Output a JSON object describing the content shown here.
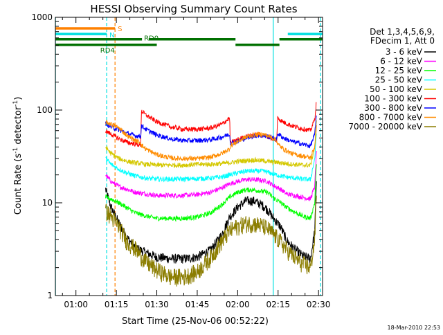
{
  "chart_data": {
    "type": "line",
    "title": "HESSI Observing Summary Count Rates",
    "xlabel": "Start Time (25-Nov-06 00:52:22)",
    "ylabel_main": "Count Rate (s",
    "ylabel_sup1": "-1",
    "ylabel_mid": " detector",
    "ylabel_sup2": "-1",
    "ylabel_end": ")",
    "yscale": "log",
    "ylim": [
      1,
      1000
    ],
    "xlim_minutes": [
      52.37,
      151.5
    ],
    "x_ticks": [
      {
        "t": 60,
        "label": "01:00"
      },
      {
        "t": 75,
        "label": "01:15"
      },
      {
        "t": 90,
        "label": "01:30"
      },
      {
        "t": 105,
        "label": "01:45"
      },
      {
        "t": 120,
        "label": "02:00"
      },
      {
        "t": 135,
        "label": "02:15"
      },
      {
        "t": 150,
        "label": "02:30"
      }
    ],
    "y_ticks": [
      {
        "v": 1,
        "label": "1"
      },
      {
        "v": 10,
        "label": "10"
      },
      {
        "v": 100,
        "label": "100"
      },
      {
        "v": 1000,
        "label": "1000"
      }
    ],
    "legend": {
      "position": "top-right",
      "header1": "Det 1,3,4,5,6,9,",
      "header2": "FDecim 1, Att 0",
      "entries": [
        {
          "label": "3 - 6 keV",
          "color": "#000000"
        },
        {
          "label": "6 - 12 keV",
          "color": "#ff00ff"
        },
        {
          "label": "12 - 25 keV",
          "color": "#00ff00"
        },
        {
          "label": "25 - 50 keV",
          "color": "#00ffff"
        },
        {
          "label": "50 - 100 keV",
          "color": "#d4c800"
        },
        {
          "label": "100 - 300 keV",
          "color": "#ff0000"
        },
        {
          "label": "300 - 800 keV",
          "color": "#0000ff"
        },
        {
          "label": "800 - 7000 keV",
          "color": "#ff8c00"
        },
        {
          "label": "7000 - 20000 keV",
          "color": "#8b7d00"
        }
      ]
    },
    "series": [
      {
        "name": "3 - 6 keV",
        "color": "#000000",
        "points": [
          [
            71,
            14
          ],
          [
            73,
            9
          ],
          [
            76,
            6
          ],
          [
            79,
            4.2
          ],
          [
            82,
            3.3
          ],
          [
            86,
            2.9
          ],
          [
            90,
            2.6
          ],
          [
            95,
            2.5
          ],
          [
            100,
            2.5
          ],
          [
            105,
            2.6
          ],
          [
            110,
            3.1
          ],
          [
            114,
            4.5
          ],
          [
            117,
            7
          ],
          [
            120,
            9
          ],
          [
            123,
            10.5
          ],
          [
            126,
            10.5
          ],
          [
            129,
            9.5
          ],
          [
            131,
            8.5
          ],
          [
            133,
            7
          ],
          [
            136,
            5.5
          ],
          [
            138,
            4
          ],
          [
            141,
            3.2
          ],
          [
            144,
            2.7
          ],
          [
            147,
            2.5
          ],
          [
            148.6,
            5
          ],
          [
            149.3,
            20
          ]
        ]
      },
      {
        "name": "6 - 12 keV",
        "color": "#ff00ff",
        "points": [
          [
            71,
            20
          ],
          [
            73,
            17
          ],
          [
            76,
            15
          ],
          [
            79,
            14
          ],
          [
            82,
            13
          ],
          [
            86,
            12.5
          ],
          [
            90,
            12
          ],
          [
            95,
            12
          ],
          [
            100,
            12
          ],
          [
            105,
            12.3
          ],
          [
            110,
            13
          ],
          [
            114,
            14.5
          ],
          [
            117,
            16
          ],
          [
            120,
            17
          ],
          [
            123,
            17.8
          ],
          [
            126,
            17.8
          ],
          [
            129,
            17.5
          ],
          [
            131,
            17
          ],
          [
            133,
            15.5
          ],
          [
            136,
            14
          ],
          [
            138,
            12.5
          ],
          [
            141,
            12
          ],
          [
            144,
            11.5
          ],
          [
            147,
            11
          ],
          [
            148.6,
            15
          ],
          [
            149.3,
            40
          ]
        ]
      },
      {
        "name": "12 - 25 keV",
        "color": "#00ff00",
        "points": [
          [
            71,
            11.5
          ],
          [
            73,
            11
          ],
          [
            76,
            10
          ],
          [
            79,
            8.8
          ],
          [
            82,
            7.8
          ],
          [
            86,
            7.2
          ],
          [
            90,
            6.8
          ],
          [
            95,
            6.8
          ],
          [
            100,
            6.8
          ],
          [
            105,
            7
          ],
          [
            110,
            7.8
          ],
          [
            114,
            9.5
          ],
          [
            117,
            11.5
          ],
          [
            120,
            13
          ],
          [
            123,
            13.8
          ],
          [
            126,
            13.8
          ],
          [
            129,
            13.3
          ],
          [
            131,
            13
          ],
          [
            133,
            11.5
          ],
          [
            136,
            10
          ],
          [
            138,
            9
          ],
          [
            141,
            8
          ],
          [
            144,
            7.2
          ],
          [
            147,
            6.8
          ],
          [
            148.6,
            10
          ],
          [
            149.3,
            30
          ]
        ]
      },
      {
        "name": "25 - 50 keV",
        "color": "#00ffff",
        "points": [
          [
            71,
            30
          ],
          [
            73,
            26
          ],
          [
            76,
            23
          ],
          [
            79,
            21
          ],
          [
            82,
            19.5
          ],
          [
            86,
            18.5
          ],
          [
            90,
            18
          ],
          [
            95,
            18
          ],
          [
            100,
            18
          ],
          [
            105,
            18.2
          ],
          [
            110,
            18.5
          ],
          [
            114,
            19
          ],
          [
            117,
            20
          ],
          [
            120,
            21
          ],
          [
            123,
            22
          ],
          [
            126,
            22
          ],
          [
            129,
            22
          ],
          [
            131,
            21.5
          ],
          [
            133,
            20.5
          ],
          [
            136,
            19.5
          ],
          [
            138,
            19
          ],
          [
            141,
            18.5
          ],
          [
            144,
            18
          ],
          [
            147,
            17.8
          ],
          [
            148.6,
            30
          ],
          [
            149.3,
            60
          ]
        ]
      },
      {
        "name": "50 - 100 keV",
        "color": "#d4c800",
        "points": [
          [
            71,
            40
          ],
          [
            73,
            34
          ],
          [
            76,
            30
          ],
          [
            79,
            28
          ],
          [
            82,
            27
          ],
          [
            86,
            26
          ],
          [
            90,
            25.5
          ],
          [
            95,
            25.5
          ],
          [
            100,
            25.5
          ],
          [
            105,
            26
          ],
          [
            110,
            26
          ],
          [
            114,
            26.5
          ],
          [
            117,
            27
          ],
          [
            120,
            28
          ],
          [
            123,
            28.5
          ],
          [
            126,
            29
          ],
          [
            129,
            28.5
          ],
          [
            131,
            28
          ],
          [
            133,
            27.5
          ],
          [
            136,
            27
          ],
          [
            138,
            26.5
          ],
          [
            141,
            26
          ],
          [
            144,
            25.5
          ],
          [
            147,
            25.5
          ],
          [
            148.6,
            40
          ],
          [
            149.3,
            80
          ]
        ]
      },
      {
        "name": "100 - 300 keV",
        "color": "#ff0000",
        "points": [
          [
            71,
            60
          ],
          [
            73,
            55
          ],
          [
            76,
            49
          ],
          [
            79,
            45
          ],
          [
            82,
            43
          ],
          [
            84,
            42
          ],
          [
            84.3,
            98
          ],
          [
            86,
            88
          ],
          [
            90,
            75
          ],
          [
            95,
            66
          ],
          [
            100,
            62
          ],
          [
            105,
            62
          ],
          [
            110,
            64
          ],
          [
            114,
            70
          ],
          [
            117,
            82
          ],
          [
            117.3,
            44
          ],
          [
            120,
            48
          ],
          [
            123,
            52
          ],
          [
            126,
            54
          ],
          [
            129,
            54
          ],
          [
            131,
            52
          ],
          [
            133,
            49
          ],
          [
            134.5,
            47
          ],
          [
            134.8,
            82
          ],
          [
            137,
            74
          ],
          [
            140,
            68
          ],
          [
            144,
            63
          ],
          [
            147,
            60
          ],
          [
            148.6,
            80
          ],
          [
            149.3,
            130
          ]
        ]
      },
      {
        "name": "300 - 800 keV",
        "color": "#0000ff",
        "points": [
          [
            71,
            72
          ],
          [
            73,
            66
          ],
          [
            76,
            61
          ],
          [
            79,
            56
          ],
          [
            82,
            53
          ],
          [
            84,
            52
          ],
          [
            84.3,
            68
          ],
          [
            86,
            62
          ],
          [
            90,
            54
          ],
          [
            95,
            49
          ],
          [
            100,
            47
          ],
          [
            105,
            47
          ],
          [
            110,
            48
          ],
          [
            114,
            51
          ],
          [
            117,
            55
          ],
          [
            117.3,
            44
          ],
          [
            120,
            46
          ],
          [
            123,
            50
          ],
          [
            126,
            53
          ],
          [
            129,
            53
          ],
          [
            131,
            52
          ],
          [
            133,
            50
          ],
          [
            134.5,
            48
          ],
          [
            134.8,
            56
          ],
          [
            137,
            50
          ],
          [
            140,
            46
          ],
          [
            144,
            43
          ],
          [
            147,
            41
          ],
          [
            148.6,
            55
          ],
          [
            149.3,
            90
          ]
        ]
      },
      {
        "name": "800 - 7000 keV",
        "color": "#ff8c00",
        "points": [
          [
            71,
            74
          ],
          [
            73,
            71
          ],
          [
            76,
            64
          ],
          [
            79,
            53
          ],
          [
            82,
            47
          ],
          [
            84,
            45
          ],
          [
            84.3,
            42
          ],
          [
            86,
            38
          ],
          [
            90,
            33
          ],
          [
            95,
            30.5
          ],
          [
            100,
            30
          ],
          [
            105,
            30
          ],
          [
            110,
            31
          ],
          [
            114,
            34
          ],
          [
            117,
            38
          ],
          [
            117.3,
            41
          ],
          [
            120,
            46
          ],
          [
            123,
            51
          ],
          [
            126,
            54
          ],
          [
            129,
            55
          ],
          [
            131,
            53
          ],
          [
            133,
            50
          ],
          [
            134.5,
            47
          ],
          [
            134.8,
            43
          ],
          [
            137,
            38
          ],
          [
            140,
            34
          ],
          [
            144,
            32
          ],
          [
            147,
            30.5
          ],
          [
            148.6,
            40
          ],
          [
            149.3,
            70
          ]
        ]
      },
      {
        "name": "7000 - 20000 keV",
        "color": "#8b7d00",
        "points": [
          [
            71,
            8.2
          ],
          [
            73,
            7.2
          ],
          [
            76,
            5.5
          ],
          [
            79,
            3.8
          ],
          [
            82,
            3.2
          ],
          [
            86,
            2.3
          ],
          [
            90,
            1.9
          ],
          [
            95,
            1.6
          ],
          [
            100,
            1.6
          ],
          [
            105,
            1.8
          ],
          [
            110,
            2.6
          ],
          [
            114,
            3.8
          ],
          [
            117,
            5
          ],
          [
            120,
            5.6
          ],
          [
            123,
            6
          ],
          [
            126,
            6
          ],
          [
            129,
            5.7
          ],
          [
            131,
            5.3
          ],
          [
            133,
            4.7
          ],
          [
            136,
            3.8
          ],
          [
            138,
            3.2
          ],
          [
            141,
            2.6
          ],
          [
            144,
            2.2
          ],
          [
            147,
            2
          ],
          [
            148.6,
            4
          ],
          [
            149.3,
            15
          ]
        ]
      }
    ],
    "flag_bars": [
      {
        "label": "S",
        "color": "#ff8000",
        "segments": [
          [
            52.37,
            74.5
          ]
        ],
        "y_value": 760
      },
      {
        "label": "N",
        "color": "#00e0e0",
        "segments": [
          [
            52.37,
            71.4
          ],
          [
            138.6,
            151.5
          ]
        ],
        "y_value": 660
      },
      {
        "label": "RD0",
        "color": "#007000",
        "segments": [
          [
            52.37,
            84.5
          ],
          [
            87.0,
            119.2
          ],
          [
            135.5,
            151.5
          ]
        ],
        "y_value": 580
      },
      {
        "label": "RD4",
        "color": "#007000",
        "segments": [
          [
            52.37,
            90.0
          ],
          [
            119.2,
            135.5
          ]
        ],
        "y_value": 505
      }
    ],
    "vertical_lines": [
      {
        "t": 52.4,
        "color": "#00e0e0",
        "style": "solid"
      },
      {
        "t": 71.4,
        "color": "#00e0e0",
        "style": "dashed"
      },
      {
        "t": 74.5,
        "color": "#ff8000",
        "style": "dashed"
      },
      {
        "t": 133.2,
        "color": "#00e0e0",
        "style": "solid"
      },
      {
        "t": 150.8,
        "color": "#00e0e0",
        "style": "dashed"
      }
    ]
  },
  "footer": {
    "timestamp": "18-Mar-2010 22:53"
  }
}
